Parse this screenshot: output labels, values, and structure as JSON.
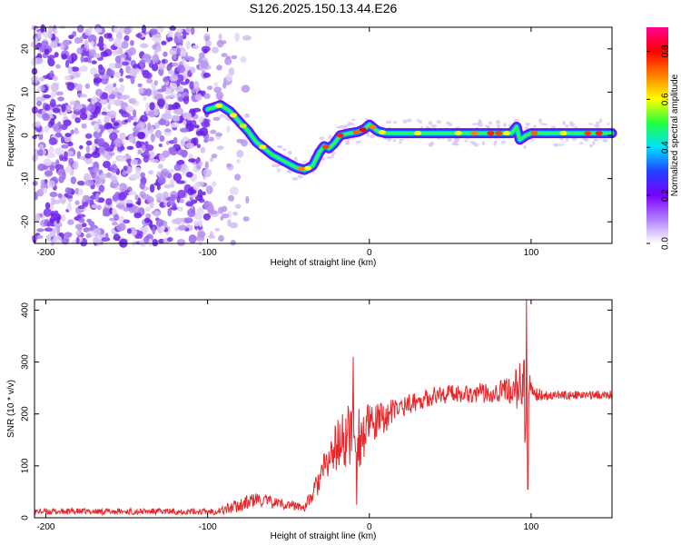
{
  "title": "S126.2025.150.13.44.E26",
  "chart_data": [
    {
      "type": "heatmap",
      "title": "S126.2025.150.13.44.E26",
      "xlabel": "Height of straight line (km)",
      "ylabel": "Frequency (Hz)",
      "xlim": [
        -207,
        150
      ],
      "ylim": [
        -25,
        25
      ],
      "xticks": [
        -200,
        -100,
        0,
        100
      ],
      "yticks": [
        -20,
        -10,
        0,
        10,
        20
      ],
      "colorbar": {
        "label": "Normalized spectral amplitude",
        "range": [
          0.0,
          0.9
        ],
        "ticks": [
          "0.0",
          "0.2",
          "0.4",
          "0.6",
          "0.8"
        ],
        "colors": [
          "#ffffff",
          "#b080ff",
          "#7a00ff",
          "#2040ff",
          "#00e0ff",
          "#20ff40",
          "#ffff00",
          "#ff8000",
          "#ff0000",
          "#ff0090"
        ]
      },
      "trace": {
        "x": [
          -100,
          -92,
          -86,
          -80,
          -75,
          -70,
          -65,
          -60,
          -55,
          -50,
          -45,
          -40,
          -35,
          -31,
          -28,
          -25,
          -22,
          -18,
          -12,
          -7,
          -3,
          0,
          5,
          10,
          20,
          40,
          60,
          80,
          88,
          91,
          93,
          97,
          100,
          110,
          130,
          150
        ],
        "y": [
          6,
          7,
          5.5,
          3,
          1,
          -1.5,
          -3,
          -4.5,
          -5.5,
          -6.5,
          -7.5,
          -8,
          -7,
          -4,
          -2.5,
          -3,
          -2,
          0,
          0.5,
          0.8,
          1.5,
          2.5,
          1,
          0.5,
          0.5,
          0.5,
          0.5,
          0.5,
          0.5,
          2,
          -1,
          0,
          0.5,
          0.5,
          0.5,
          0.5
        ]
      }
    },
    {
      "type": "line",
      "xlabel": "Height of straight line (km)",
      "ylabel": "SNR (10 * v/v)",
      "xlim": [
        -207,
        150
      ],
      "ylim": [
        0,
        420
      ],
      "xticks": [
        -200,
        -100,
        0,
        100
      ],
      "yticks": [
        0,
        100,
        200,
        300,
        400
      ],
      "series": [
        {
          "color": "#e8262a",
          "envelope_x": [
            -207,
            -100,
            -90,
            -80,
            -70,
            -60,
            -50,
            -40,
            -35,
            -30,
            -25,
            -20,
            -15,
            -10,
            -5,
            0,
            5,
            10,
            20,
            30,
            40,
            50,
            60,
            70,
            80,
            85,
            90,
            93,
            95,
            96,
            97,
            98,
            99,
            100,
            105,
            110,
            120,
            130,
            150
          ],
          "envelope_y": [
            12,
            12,
            15,
            25,
            35,
            30,
            25,
            20,
            45,
            80,
            110,
            140,
            150,
            170,
            155,
            175,
            185,
            195,
            215,
            225,
            235,
            240,
            240,
            240,
            245,
            245,
            250,
            250,
            240,
            200,
            150,
            240,
            240,
            240,
            238,
            236,
            236,
            236,
            238
          ],
          "noise": [
            6,
            6,
            10,
            14,
            14,
            12,
            10,
            8,
            18,
            30,
            40,
            50,
            60,
            70,
            60,
            45,
            35,
            30,
            20,
            18,
            18,
            18,
            18,
            20,
            22,
            25,
            35,
            60,
            90,
            110,
            130,
            80,
            40,
            20,
            12,
            10,
            8,
            8,
            8
          ],
          "spikes": [
            {
              "x": -10,
              "y": 310
            },
            {
              "x": -8,
              "y": 25
            },
            {
              "x": 97,
              "y": 420
            },
            {
              "x": 98,
              "y": 55
            }
          ]
        }
      ]
    }
  ]
}
